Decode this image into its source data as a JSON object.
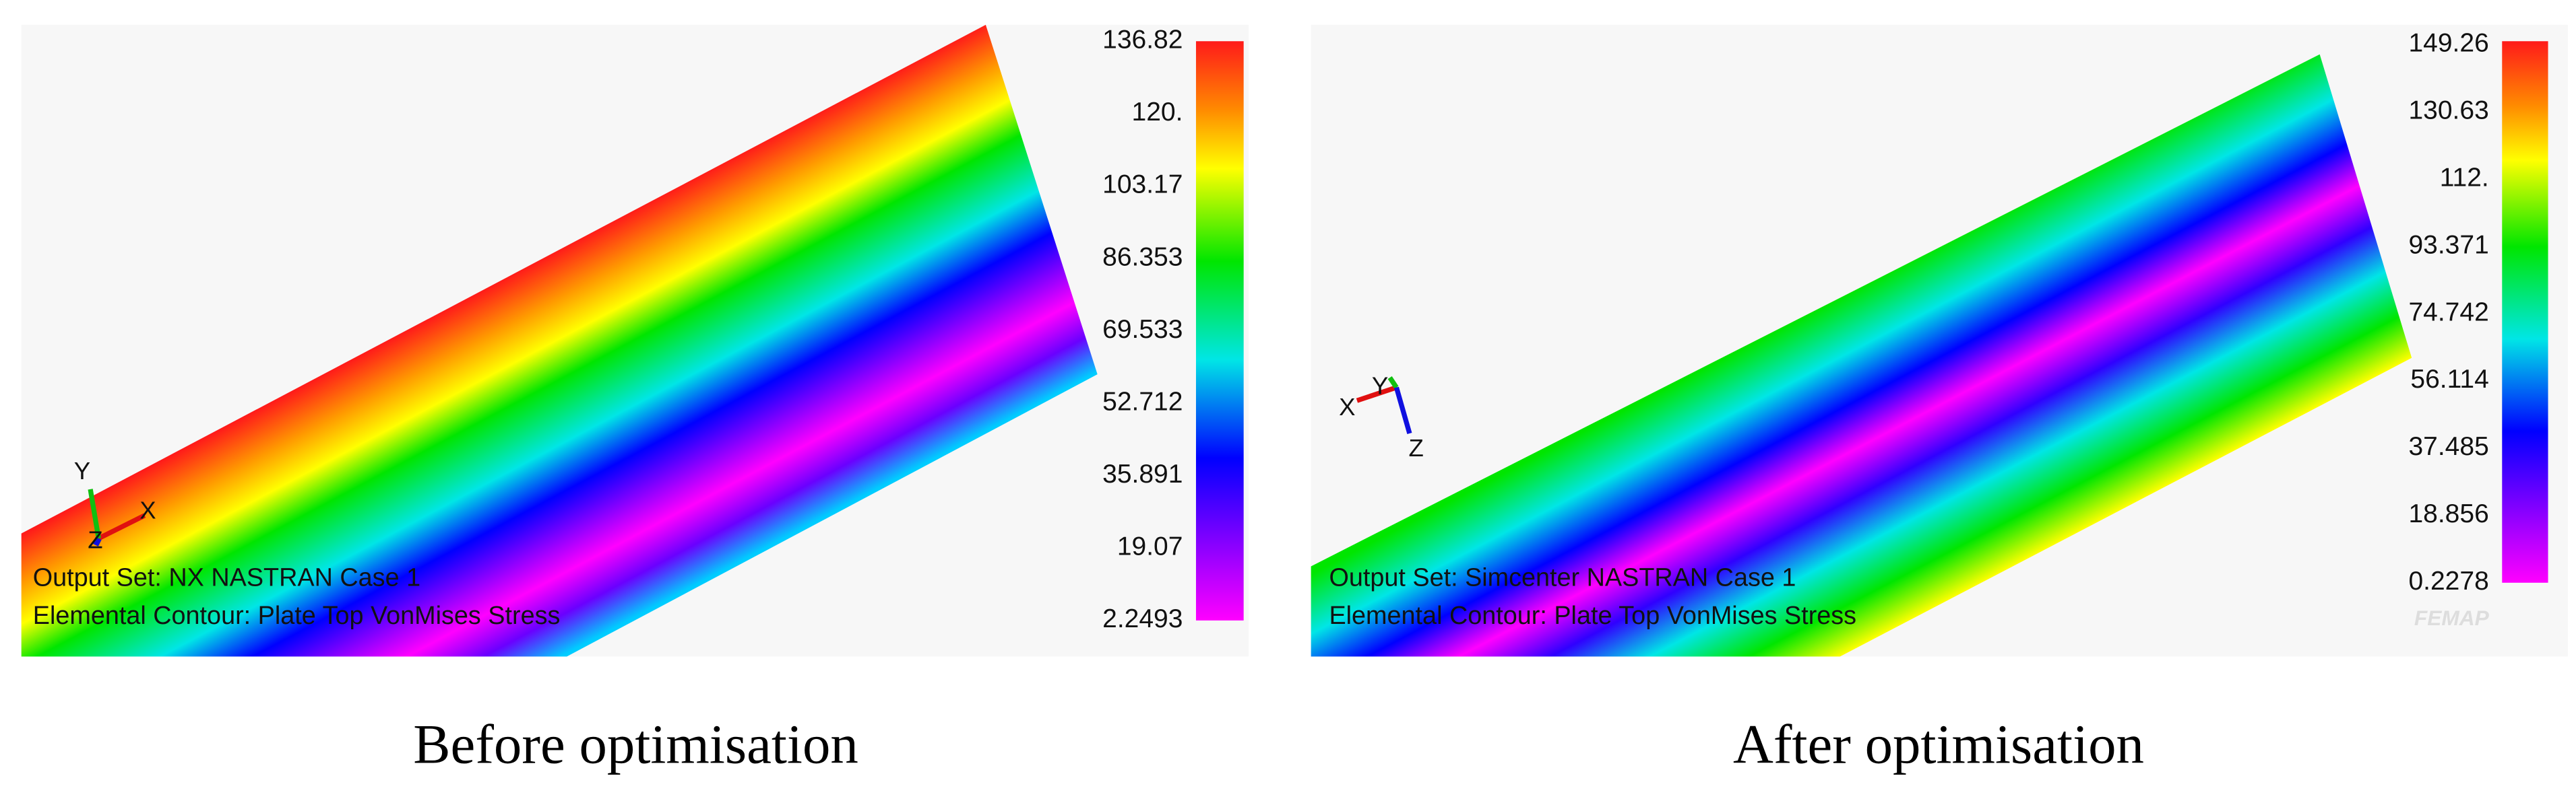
{
  "panels": [
    {
      "legend_labels": [
        "136.82",
        "120.",
        "103.17",
        "86.353",
        "69.533",
        "52.712",
        "35.891",
        "19.07",
        "2.2493"
      ],
      "output_set": "Output Set: NX NASTRAN Case 1",
      "contour": "Elemental Contour: Plate Top VonMises Stress",
      "axes": {
        "x": "X",
        "y": "Y",
        "z": "Z"
      },
      "caption": "Before optimisation"
    },
    {
      "legend_labels": [
        "149.26",
        "130.63",
        "112.",
        "93.371",
        "74.742",
        "56.114",
        "37.485",
        "18.856",
        "0.2278"
      ],
      "output_set": "Output Set: Simcenter NASTRAN Case 1",
      "contour": "Elemental Contour: Plate Top VonMises Stress",
      "axes": {
        "x": "X",
        "y": "Y",
        "z": "Z"
      },
      "watermark": "FEMAP",
      "caption": "After optimisation"
    }
  ]
}
